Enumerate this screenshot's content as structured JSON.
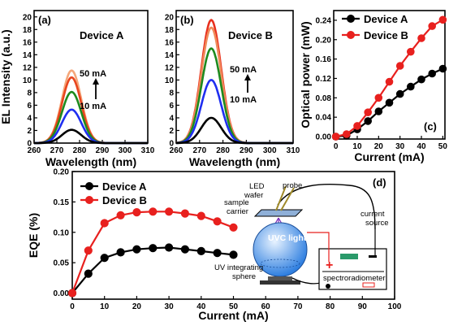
{
  "chart_data": [
    {
      "panel": "(a)",
      "type": "line",
      "title": "Device A",
      "xlabel": "Wavelength (nm)",
      "ylabel": "EL Intensity (a.u.)",
      "xlim": [
        260,
        310
      ],
      "ylim": [
        0,
        21
      ],
      "xticks": [
        "260",
        "270",
        "280",
        "290",
        "300",
        "310"
      ],
      "yticks": [
        "0",
        "2",
        "4",
        "6",
        "8",
        "10",
        "12",
        "14",
        "16",
        "18",
        "20"
      ],
      "peak_wavelength": 276.5,
      "fwhm": 10,
      "annotation_top": "50 mA",
      "annotation_bottom": "10 mA",
      "series": [
        {
          "current": 10,
          "color": "#000000",
          "peak": 2.1
        },
        {
          "current": 20,
          "color": "#1f2ff0",
          "peak": 5.3
        },
        {
          "current": 30,
          "color": "#1e8a1e",
          "peak": 8.1
        },
        {
          "current": 40,
          "color": "#e8451e",
          "peak": 10.4
        },
        {
          "current": 50,
          "color": "#f5a77a",
          "peak": 11.5
        }
      ]
    },
    {
      "panel": "(b)",
      "type": "line",
      "title": "Device B",
      "xlabel": "Wavelength (nm)",
      "ylabel": "",
      "xlim": [
        260,
        310
      ],
      "ylim": [
        0,
        21
      ],
      "xticks": [
        "260",
        "270",
        "280",
        "290",
        "300",
        "310"
      ],
      "yticks": [
        "0",
        "2",
        "4",
        "6",
        "8",
        "10",
        "12",
        "14",
        "16",
        "18",
        "20"
      ],
      "peak_wavelength": 275,
      "fwhm": 10,
      "annotation_top": "50 mA",
      "annotation_bottom": "10 mA",
      "series": [
        {
          "current": 10,
          "color": "#000000",
          "peak": 4.0
        },
        {
          "current": 20,
          "color": "#1f2ff0",
          "peak": 10.0
        },
        {
          "current": 30,
          "color": "#1e8a1e",
          "peak": 15.0
        },
        {
          "current": 40,
          "color": "#f08a5a",
          "peak": 18.3
        },
        {
          "current": 50,
          "color": "#e8301e",
          "peak": 19.5
        }
      ]
    },
    {
      "panel": "(c)",
      "type": "line",
      "xlabel": "Current (mA)",
      "ylabel": "Optical power (mW)",
      "xlim": [
        -1,
        51
      ],
      "ylim": [
        -0.005,
        0.26
      ],
      "xticks": [
        "0",
        "10",
        "20",
        "30",
        "40",
        "50"
      ],
      "yticks": [
        "0.00",
        "0.04",
        "0.08",
        "0.12",
        "0.16",
        "0.20",
        "0.24"
      ],
      "x": [
        0,
        5,
        10,
        15,
        20,
        25,
        30,
        35,
        40,
        45,
        50
      ],
      "series": [
        {
          "name": "Device A",
          "color": "#000000",
          "values": [
            0.0,
            0.002,
            0.015,
            0.032,
            0.052,
            0.07,
            0.088,
            0.103,
            0.118,
            0.13,
            0.14
          ]
        },
        {
          "name": "Device B",
          "color": "#e8201e",
          "values": [
            0.0,
            0.005,
            0.022,
            0.05,
            0.08,
            0.113,
            0.146,
            0.175,
            0.203,
            0.228,
            0.241
          ]
        }
      ]
    },
    {
      "panel": "(d)",
      "type": "line",
      "xlabel": "Current (mA)",
      "ylabel": "EQE (%)",
      "xlim": [
        0,
        100
      ],
      "ylim": [
        -0.01,
        0.2
      ],
      "xticks": [
        "0",
        "10",
        "20",
        "30",
        "40",
        "50",
        "60",
        "70",
        "80",
        "90",
        "100"
      ],
      "yticks": [
        "0.00",
        "0.05",
        "0.10",
        "0.15",
        "0.20"
      ],
      "x": [
        0,
        5,
        10,
        15,
        20,
        25,
        30,
        35,
        40,
        45,
        50
      ],
      "series": [
        {
          "name": "Device A",
          "color": "#000000",
          "values": [
            0.0,
            0.032,
            0.058,
            0.067,
            0.072,
            0.074,
            0.075,
            0.072,
            0.069,
            0.066,
            0.063
          ]
        },
        {
          "name": "Device B",
          "color": "#e8201e",
          "values": [
            0.0,
            0.07,
            0.115,
            0.128,
            0.133,
            0.134,
            0.134,
            0.131,
            0.127,
            0.118,
            0.108
          ]
        }
      ]
    }
  ],
  "inset": {
    "led_wafer": "LED wafer",
    "probe": "probe",
    "sample_carrier": "sample carrier",
    "uvc_light": "UVC light",
    "current_source": "current source",
    "uv_sphere": "UV integrating sphere",
    "spectroradiometer": "spectroradiometer",
    "plus": "+",
    "minus": "−"
  }
}
